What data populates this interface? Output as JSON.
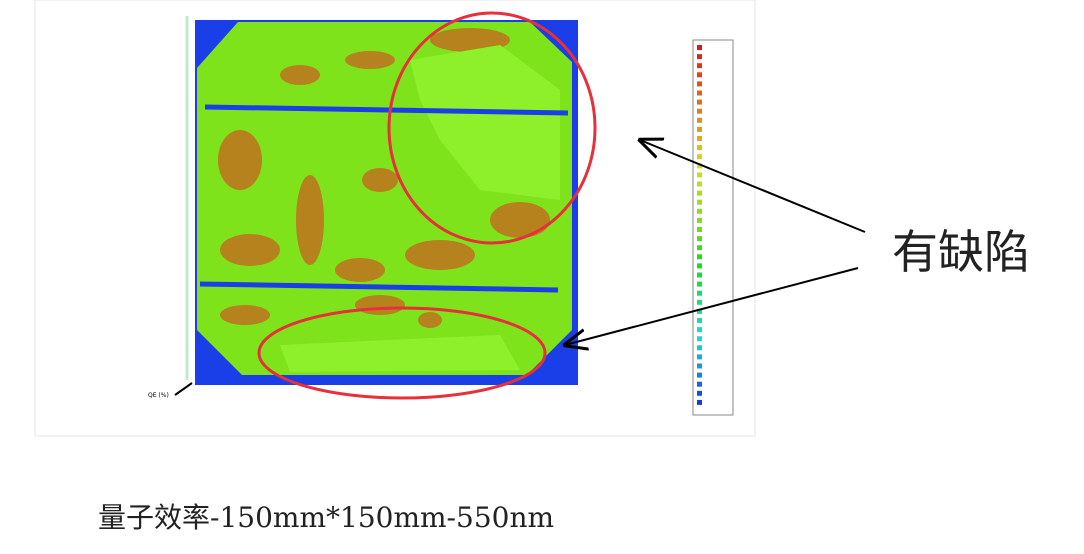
{
  "figure": {
    "axis_label": "QE (%)"
  },
  "annotation": "有缺陷",
  "caption": "量子效率-150mm*150mm-550nm"
}
